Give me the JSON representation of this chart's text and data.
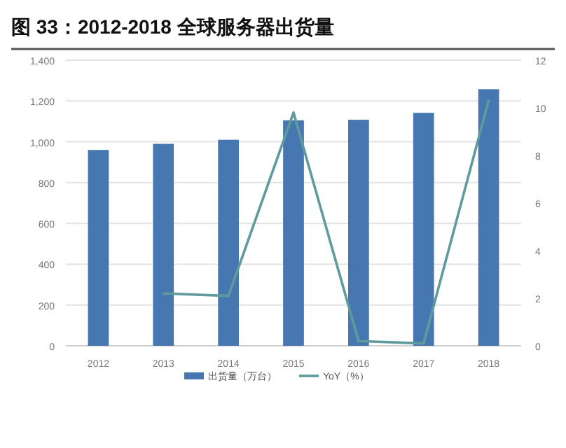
{
  "chart_data": {
    "type": "bar",
    "title": "图 33：2012-2018 全球服务器出货量",
    "categories": [
      "2012",
      "2013",
      "2014",
      "2015",
      "2016",
      "2017",
      "2018"
    ],
    "series": [
      {
        "name": "出货量（万台）",
        "color": "#4677b0",
        "values": [
          960,
          990,
          1010,
          1105,
          1108,
          1142,
          1258
        ]
      },
      {
        "name": "YoY（%）",
        "type": "line",
        "axis": "y2",
        "color": "#5f9a9c",
        "values": [
          null,
          2.2,
          2.1,
          9.8,
          0.2,
          0.1,
          10.3
        ]
      }
    ],
    "ylim": [
      0,
      1400
    ],
    "yticks": [
      0,
      200,
      400,
      600,
      800,
      {
        "value": 1000,
        "label": "1,000"
      },
      {
        "value": 1200,
        "label": "1,200"
      },
      {
        "value": 1400,
        "label": "1,400"
      }
    ],
    "y2lim": [
      0,
      12
    ],
    "y2ticks": [
      0,
      2,
      4,
      6,
      8,
      10,
      12
    ],
    "grid": "y",
    "legend": "bottom"
  }
}
